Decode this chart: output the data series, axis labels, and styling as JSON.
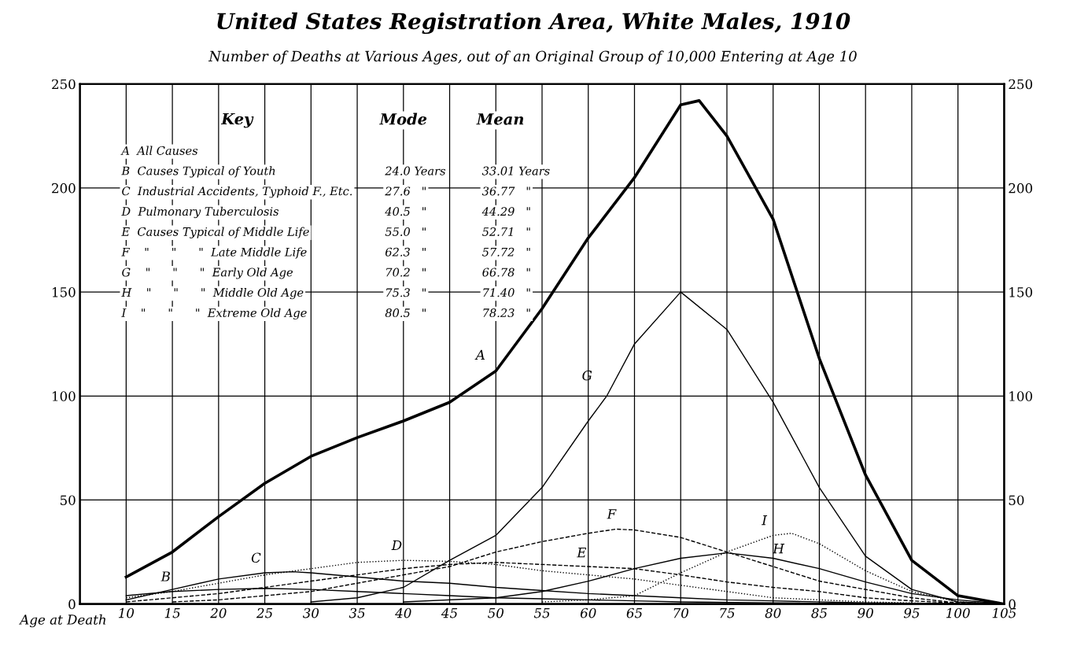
{
  "chart_data": {
    "type": "line",
    "title": "United States Registration Area, White Males, 1910",
    "subtitle": "Number of Deaths at Various Ages, out of an Original Group of 10,000 Entering at Age 10",
    "xlabel": "Age at Death",
    "xlim": [
      5,
      105
    ],
    "xticks": [
      10,
      15,
      20,
      25,
      30,
      35,
      40,
      45,
      50,
      55,
      60,
      65,
      70,
      75,
      80,
      85,
      90,
      95,
      100,
      105
    ],
    "ylim": [
      0,
      250
    ],
    "yticks": [
      0,
      50,
      100,
      150,
      200,
      250
    ],
    "y2lim": [
      0,
      250
    ],
    "y2ticks": [
      0,
      50,
      100,
      150,
      200,
      250
    ],
    "grid": true,
    "legend": false,
    "marker": "none",
    "series": [
      {
        "name": "A",
        "color": "#000000",
        "line_style": "solid",
        "x": [
          10,
          15,
          20,
          25,
          30,
          35,
          40,
          45,
          50,
          55,
          60,
          65,
          70,
          72,
          75,
          80,
          85,
          90,
          95,
          100,
          105
        ],
        "values": [
          13,
          25,
          42,
          58,
          71,
          80,
          88,
          97,
          112,
          142,
          176,
          205,
          240,
          242,
          225,
          185,
          118,
          62,
          21,
          4,
          0
        ]
      },
      {
        "name": "B",
        "color": "#000000",
        "line_style": "solid",
        "x": [
          10,
          15,
          20,
          25,
          30,
          35,
          40,
          45,
          50,
          55,
          60,
          65,
          70,
          80,
          90,
          95
        ],
        "values": [
          4,
          6,
          7,
          7.5,
          7,
          6,
          5,
          4,
          3,
          2.5,
          2,
          1.5,
          1,
          0.5,
          0.2,
          0.1
        ]
      },
      {
        "name": "C",
        "color": "#000000",
        "line_style": "solid",
        "x": [
          10,
          15,
          20,
          25,
          28,
          30,
          35,
          40,
          45,
          50,
          55,
          60,
          65,
          70,
          75,
          80,
          90,
          100
        ],
        "values": [
          2,
          7,
          12,
          15,
          15.5,
          15,
          13,
          11,
          10,
          8,
          6.5,
          5,
          4,
          3,
          2,
          1.5,
          0.5,
          0.2
        ]
      },
      {
        "name": "D",
        "color": "#000000",
        "line_style": "dotted",
        "x": [
          10,
          15,
          20,
          25,
          30,
          35,
          40,
          45,
          50,
          55,
          60,
          65,
          70,
          75,
          80,
          90,
          100
        ],
        "values": [
          3,
          6,
          10,
          14,
          17,
          20,
          21,
          20.5,
          19,
          16,
          14,
          12,
          9,
          6,
          3,
          1,
          0
        ]
      },
      {
        "name": "E",
        "color": "#000000",
        "line_style": "dashed",
        "x": [
          10,
          15,
          20,
          25,
          30,
          35,
          40,
          45,
          50,
          55,
          60,
          65,
          70,
          75,
          80,
          85,
          90,
          95,
          100,
          105
        ],
        "values": [
          1,
          3,
          5,
          8,
          11,
          14,
          17,
          19,
          20,
          19,
          18,
          17,
          14,
          10.6,
          8,
          6,
          3,
          1.5,
          0.5,
          0
        ]
      },
      {
        "name": "F",
        "color": "#000000",
        "line_style": "dashed",
        "x": [
          15,
          20,
          30,
          40,
          45,
          50,
          55,
          60,
          63,
          65,
          70,
          75,
          80,
          85,
          90,
          95,
          100
        ],
        "values": [
          1,
          2,
          6,
          14,
          18,
          25,
          30,
          34,
          36,
          35.6,
          32,
          25,
          18,
          11,
          7,
          3,
          0.5
        ]
      },
      {
        "name": "G",
        "color": "#000000",
        "line_style": "solid",
        "x": [
          30,
          35,
          40,
          45,
          50,
          55,
          60,
          62,
          65,
          70,
          75,
          80,
          85,
          90,
          95,
          100,
          105
        ],
        "values": [
          1,
          3,
          8,
          21,
          33,
          56,
          88,
          100,
          125,
          150,
          132,
          97,
          56,
          23,
          7,
          1,
          0
        ]
      },
      {
        "name": "H",
        "color": "#000000",
        "line_style": "solid",
        "x": [
          40,
          50,
          55,
          60,
          65,
          70,
          75,
          80,
          85,
          90,
          95,
          100,
          105
        ],
        "values": [
          1,
          3,
          6,
          11,
          17,
          22,
          24.6,
          22,
          17,
          10.6,
          5,
          2,
          0
        ]
      },
      {
        "name": "I",
        "color": "#000000",
        "line_style": "dotted",
        "x": [
          55,
          60,
          65,
          70,
          75,
          80,
          82,
          85,
          90,
          95,
          100,
          105
        ],
        "values": [
          1,
          2,
          4,
          15,
          25,
          33,
          34,
          29,
          16,
          6,
          1,
          0
        ]
      }
    ],
    "annotations": [
      "Key",
      "Mode",
      "Mean",
      "A  All Causes",
      "B  Causes Typical of Youth",
      "24.0 Years",
      "33.01 Years",
      "C  Industrial Accidents, Typhoid F., Etc.",
      "27.6   \"",
      "36.77   \"",
      "D  Pulmonary Tuberculosis",
      "40.5   \"",
      "44.29   \"",
      "E  Causes Typical of Middle Life",
      "55.0   \"",
      "52.71   \"",
      "F    \"      \"      \"  Late Middle Life",
      "62.3   \"",
      "57.72   \"",
      "G    \"      \"      \"  Early Old Age",
      "70.2   \"",
      "66.78   \"",
      "H    \"      \"      \"  Middle Old Age",
      "75.3   \"",
      "71.40   \"",
      "I    \"      \"      \"  Extreme Old Age",
      "80.5   \"",
      "78.23   \""
    ]
  }
}
